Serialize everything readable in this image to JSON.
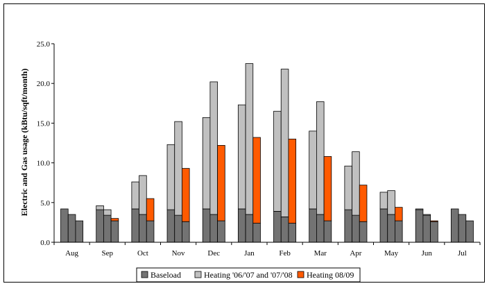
{
  "chart_data": {
    "type": "bar",
    "stacked": true,
    "categories": [
      "Aug",
      "Sep",
      "Oct",
      "Nov",
      "Dec",
      "Jan",
      "Feb",
      "Mar",
      "Apr",
      "May",
      "Jun",
      "Jul"
    ],
    "ylabel": "Electric and Gas usage (kBtu/sqft/month)",
    "xlabel": "",
    "title": "",
    "ylim": [
      0,
      25
    ],
    "yticks": [
      "0.0",
      "5.0",
      "10.0",
      "15.0",
      "20.0",
      "25.0"
    ],
    "legend_position": "bottom",
    "bars_per_category": [
      "'06/'07",
      "'07/'08",
      "08/09"
    ],
    "series": [
      {
        "name": "Baseload",
        "color": "#737373",
        "values": [
          [
            4.2,
            3.5,
            2.7
          ],
          [
            4.1,
            3.4,
            2.7
          ],
          [
            4.2,
            3.5,
            2.7
          ],
          [
            4.1,
            3.4,
            2.6
          ],
          [
            4.2,
            3.5,
            2.7
          ],
          [
            4.2,
            3.5,
            2.4
          ],
          [
            3.9,
            3.2,
            2.4
          ],
          [
            4.2,
            3.5,
            2.7
          ],
          [
            4.1,
            3.4,
            2.6
          ],
          [
            4.2,
            3.5,
            2.7
          ],
          [
            4.1,
            3.4,
            2.6
          ],
          [
            4.2,
            3.5,
            2.7
          ]
        ]
      },
      {
        "name": "Heating '06/'07 and '07/'08",
        "color": "#c0c0c0",
        "values": [
          [
            0,
            0,
            null
          ],
          [
            0.5,
            0.7,
            null
          ],
          [
            3.4,
            4.9,
            null
          ],
          [
            8.2,
            11.8,
            null
          ],
          [
            11.5,
            16.7,
            null
          ],
          [
            13.1,
            19.0,
            null
          ],
          [
            12.6,
            18.6,
            null
          ],
          [
            9.8,
            14.2,
            null
          ],
          [
            5.5,
            8.0,
            null
          ],
          [
            2.1,
            3.0,
            null
          ],
          [
            0.1,
            0.1,
            null
          ],
          [
            0,
            0,
            null
          ]
        ]
      },
      {
        "name": "Heating 08/09",
        "color": "#ff5a00",
        "values": [
          [
            null,
            null,
            0
          ],
          [
            null,
            null,
            0.3
          ],
          [
            null,
            null,
            2.8
          ],
          [
            null,
            null,
            6.7
          ],
          [
            null,
            null,
            9.5
          ],
          [
            null,
            null,
            10.8
          ],
          [
            null,
            null,
            10.6
          ],
          [
            null,
            null,
            8.1
          ],
          [
            null,
            null,
            4.6
          ],
          [
            null,
            null,
            1.7
          ],
          [
            null,
            null,
            0.1
          ],
          [
            null,
            null,
            0
          ]
        ]
      }
    ]
  }
}
